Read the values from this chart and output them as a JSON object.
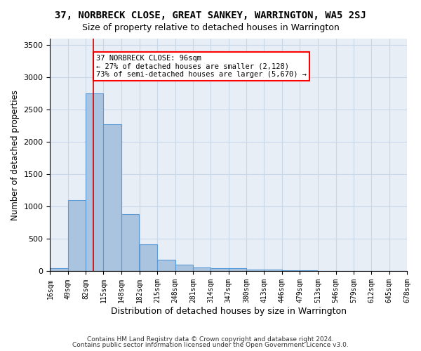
{
  "title": "37, NORBRECK CLOSE, GREAT SANKEY, WARRINGTON, WA5 2SJ",
  "subtitle": "Size of property relative to detached houses in Warrington",
  "xlabel": "Distribution of detached houses by size in Warrington",
  "ylabel": "Number of detached properties",
  "bin_edges": [
    16,
    49,
    82,
    115,
    148,
    182,
    215,
    248,
    281,
    314,
    347,
    380,
    413,
    446,
    479,
    513,
    546,
    579,
    612,
    645,
    678
  ],
  "bar_heights": [
    50,
    1100,
    2750,
    2270,
    880,
    420,
    175,
    100,
    60,
    50,
    45,
    30,
    30,
    20,
    20,
    5,
    3,
    2,
    1,
    0
  ],
  "bar_color": "#aac4e0",
  "bar_edgecolor": "#5b9bd5",
  "bar_linewidth": 0.8,
  "grid_color": "#c8d8e8",
  "background_color": "#e8eef6",
  "red_line_x": 96,
  "annotation_text": "37 NORBRECK CLOSE: 96sqm\n← 27% of detached houses are smaller (2,128)\n73% of semi-detached houses are larger (5,670) →",
  "annotation_box_color": "white",
  "annotation_box_edgecolor": "red",
  "red_line_color": "#cc0000",
  "footnote1": "Contains HM Land Registry data © Crown copyright and database right 2024.",
  "footnote2": "Contains public sector information licensed under the Open Government Licence v3.0.",
  "ylim": [
    0,
    3600
  ],
  "tick_labels": [
    "16sqm",
    "49sqm",
    "82sqm",
    "115sqm",
    "148sqm",
    "182sqm",
    "215sqm",
    "248sqm",
    "281sqm",
    "314sqm",
    "347sqm",
    "380sqm",
    "413sqm",
    "446sqm",
    "479sqm",
    "513sqm",
    "546sqm",
    "579sqm",
    "612sqm",
    "645sqm",
    "678sqm"
  ]
}
